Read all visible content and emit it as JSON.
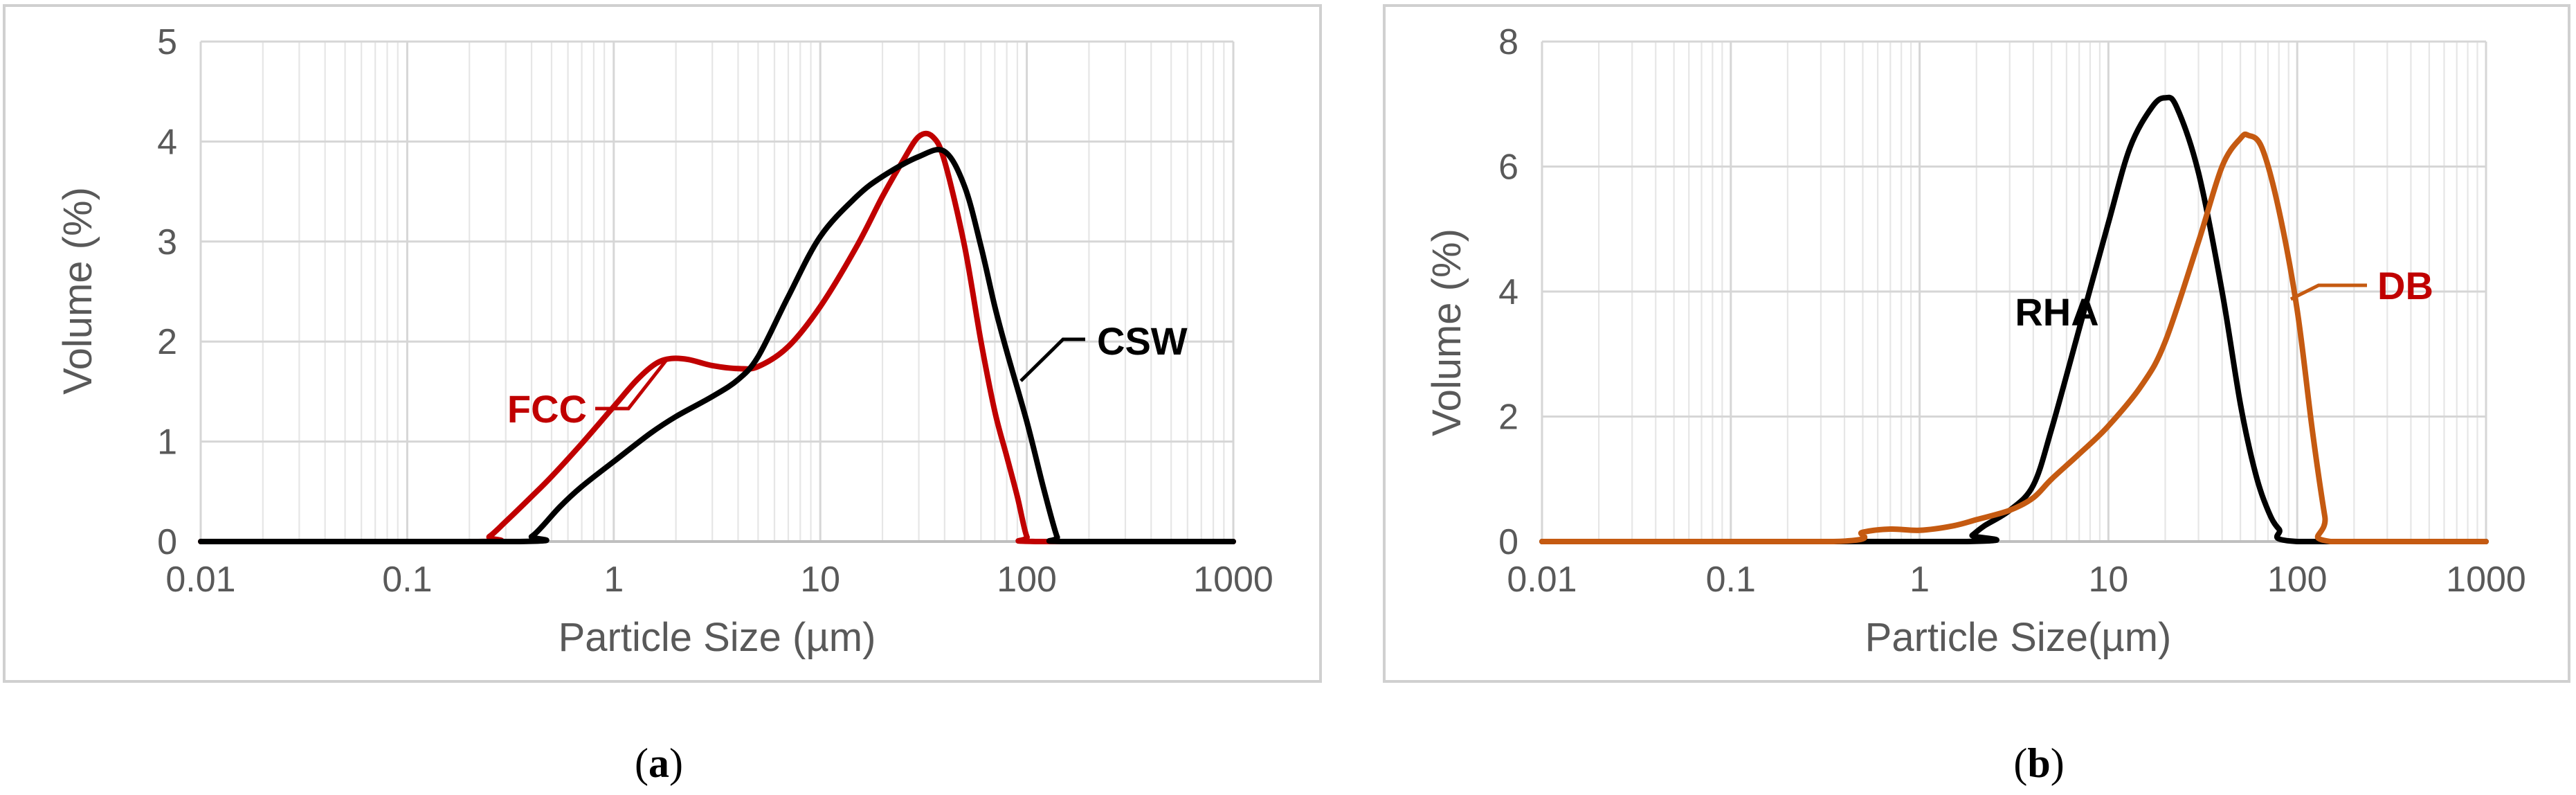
{
  "figure": {
    "background": "#ffffff"
  },
  "chart_data": [
    {
      "id": "a",
      "type": "line",
      "panel_label": {
        "open": "(",
        "letter": "a",
        "close": ")"
      },
      "title": "",
      "xlabel": "Particle Size (µm)",
      "ylabel": "Volume (%)",
      "xscale": "log",
      "xlim": [
        0.01,
        1000
      ],
      "ylim": [
        0,
        5
      ],
      "xticks": [
        0.01,
        0.1,
        1,
        10,
        100,
        1000
      ],
      "xtick_labels": [
        "0.01",
        "0.1",
        "1",
        "10",
        "100",
        "1000"
      ],
      "yticks": [
        0,
        1,
        2,
        3,
        4,
        5
      ],
      "ytick_labels": [
        "0",
        "1",
        "2",
        "3",
        "4",
        "5"
      ],
      "grid": true,
      "series": [
        {
          "name": "FCC",
          "color": "#c00000",
          "label_anchor": {
            "x": 1.35,
            "y": 1.35
          },
          "points": [
            [
              0.01,
              0
            ],
            [
              0.22,
              0
            ],
            [
              0.25,
              0.05
            ],
            [
              0.3,
              0.2
            ],
            [
              0.4,
              0.45
            ],
            [
              0.5,
              0.65
            ],
            [
              0.7,
              0.98
            ],
            [
              1,
              1.35
            ],
            [
              1.3,
              1.62
            ],
            [
              1.6,
              1.78
            ],
            [
              1.9,
              1.83
            ],
            [
              2.3,
              1.82
            ],
            [
              3,
              1.76
            ],
            [
              4,
              1.73
            ],
            [
              5,
              1.75
            ],
            [
              7,
              1.95
            ],
            [
              10,
              2.35
            ],
            [
              15,
              2.95
            ],
            [
              20,
              3.45
            ],
            [
              25,
              3.8
            ],
            [
              30,
              4.05
            ],
            [
              35,
              4.05
            ],
            [
              40,
              3.8
            ],
            [
              50,
              2.95
            ],
            [
              60,
              2.0
            ],
            [
              70,
              1.3
            ],
            [
              80,
              0.85
            ],
            [
              90,
              0.45
            ],
            [
              100,
              0.05
            ],
            [
              110,
              0
            ],
            [
              1000,
              0
            ]
          ]
        },
        {
          "name": "CSW",
          "color": "#000000",
          "label_anchor": {
            "x": 100,
            "y": 1.6
          },
          "points": [
            [
              0.01,
              0
            ],
            [
              0.35,
              0
            ],
            [
              0.4,
              0.05
            ],
            [
              0.45,
              0.15
            ],
            [
              0.55,
              0.35
            ],
            [
              0.7,
              0.55
            ],
            [
              1,
              0.8
            ],
            [
              1.5,
              1.08
            ],
            [
              2,
              1.25
            ],
            [
              3,
              1.45
            ],
            [
              4,
              1.62
            ],
            [
              5,
              1.85
            ],
            [
              7,
              2.45
            ],
            [
              10,
              3.05
            ],
            [
              15,
              3.45
            ],
            [
              20,
              3.65
            ],
            [
              30,
              3.85
            ],
            [
              40,
              3.9
            ],
            [
              50,
              3.55
            ],
            [
              60,
              2.95
            ],
            [
              70,
              2.35
            ],
            [
              80,
              1.9
            ],
            [
              100,
              1.2
            ],
            [
              120,
              0.55
            ],
            [
              140,
              0.05
            ],
            [
              150,
              0
            ],
            [
              1000,
              0
            ]
          ]
        }
      ]
    },
    {
      "id": "b",
      "type": "line",
      "panel_label": {
        "open": "(",
        "letter": "b",
        "close": ")"
      },
      "title": "",
      "xlabel": "Particle Size(µm)",
      "ylabel": "Volume (%)",
      "xscale": "log",
      "xlim": [
        0.01,
        1000
      ],
      "ylim": [
        0,
        8
      ],
      "xticks": [
        0.01,
        0.1,
        1,
        10,
        100,
        1000
      ],
      "xtick_labels": [
        "0.01",
        "0.1",
        "1",
        "10",
        "100",
        "1000"
      ],
      "yticks": [
        0,
        2,
        4,
        6,
        8
      ],
      "ytick_labels": [
        "0",
        "2",
        "4",
        "6",
        "8"
      ],
      "grid": true,
      "series": [
        {
          "name": "RHA",
          "color": "#000000",
          "label_anchor": null,
          "points": [
            [
              0.01,
              0
            ],
            [
              1.7,
              0
            ],
            [
              1.9,
              0.1
            ],
            [
              2.2,
              0.25
            ],
            [
              3,
              0.5
            ],
            [
              4,
              0.9
            ],
            [
              5,
              1.8
            ],
            [
              7,
              3.4
            ],
            [
              10,
              5.1
            ],
            [
              13,
              6.3
            ],
            [
              17,
              6.95
            ],
            [
              20,
              7.1
            ],
            [
              23,
              6.95
            ],
            [
              30,
              5.9
            ],
            [
              40,
              4.0
            ],
            [
              50,
              2.2
            ],
            [
              60,
              1.1
            ],
            [
              70,
              0.5
            ],
            [
              80,
              0.2
            ],
            [
              100,
              0
            ],
            [
              1000,
              0
            ]
          ]
        },
        {
          "name": "DB",
          "color": "#c55a11",
          "label_anchor": {
            "x": 100,
            "y": 4.0
          },
          "points": [
            [
              0.01,
              0
            ],
            [
              0.35,
              0
            ],
            [
              0.5,
              0.15
            ],
            [
              0.7,
              0.2
            ],
            [
              1,
              0.18
            ],
            [
              1.5,
              0.25
            ],
            [
              2,
              0.35
            ],
            [
              3,
              0.5
            ],
            [
              4,
              0.7
            ],
            [
              5,
              1.0
            ],
            [
              7,
              1.4
            ],
            [
              10,
              1.85
            ],
            [
              15,
              2.5
            ],
            [
              20,
              3.2
            ],
            [
              30,
              4.8
            ],
            [
              40,
              6.0
            ],
            [
              50,
              6.45
            ],
            [
              55,
              6.5
            ],
            [
              65,
              6.3
            ],
            [
              80,
              5.3
            ],
            [
              100,
              3.7
            ],
            [
              120,
              1.8
            ],
            [
              140,
              0.4
            ],
            [
              150,
              0
            ],
            [
              1000,
              0
            ]
          ]
        }
      ]
    }
  ]
}
